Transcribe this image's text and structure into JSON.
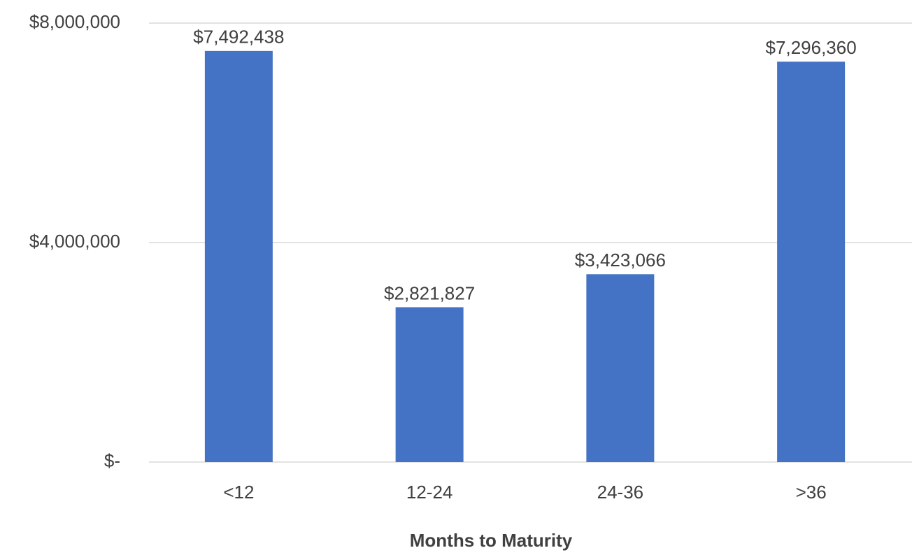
{
  "chart_data": {
    "type": "bar",
    "categories": [
      "<12",
      "12-24",
      "24-36",
      ">36"
    ],
    "values": [
      7492438,
      2821827,
      3423066,
      7296360
    ],
    "value_labels": [
      "$7,492,438",
      "$2,821,827",
      "$3,423,066",
      "$7,296,360"
    ],
    "color": "#4472c4",
    "x_label": "Months to Maturity",
    "ylim": [
      0,
      8000000
    ],
    "yticks": [
      {
        "value": 0,
        "label": "$-"
      },
      {
        "value": 4000000,
        "label": "$4,000,000"
      },
      {
        "value": 8000000,
        "label": "$8,000,000"
      }
    ],
    "grid": true
  }
}
